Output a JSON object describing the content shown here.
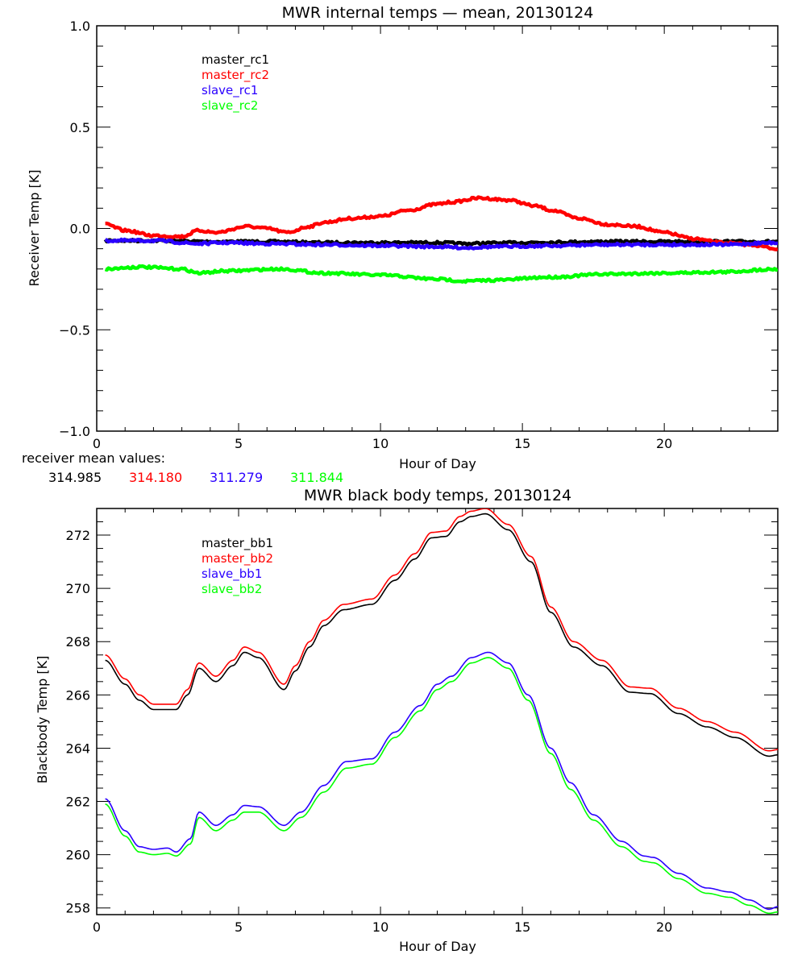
{
  "chart_data": [
    {
      "type": "line",
      "title": "MWR internal temps — mean, 20130124",
      "xlabel": "Hour of Day",
      "ylabel": "Receiver Temp [K]",
      "xlim": [
        0,
        24
      ],
      "ylim": [
        -1.0,
        1.0
      ],
      "xticks": [
        0,
        5,
        10,
        15,
        20
      ],
      "xtick_labels": [
        "0",
        "5",
        "10",
        "15",
        "20"
      ],
      "yticks": [
        -1.0,
        -0.5,
        0.0,
        0.5,
        1.0
      ],
      "ytick_labels": [
        "−1.0",
        "−0.5",
        "0.0",
        "0.5",
        "1.0"
      ],
      "x_minor_step": 1,
      "y_minor_step": 0.1,
      "grid": false,
      "legend_position": "top-left",
      "noisy": true,
      "series": [
        {
          "name": "master_rc1",
          "color": "#000000",
          "x": [
            0.3,
            2,
            4,
            6,
            8,
            10,
            12,
            13,
            14,
            16,
            18,
            20,
            22,
            24
          ],
          "values": [
            -0.06,
            -0.06,
            -0.065,
            -0.065,
            -0.07,
            -0.07,
            -0.07,
            -0.075,
            -0.072,
            -0.068,
            -0.065,
            -0.065,
            -0.065,
            -0.065
          ]
        },
        {
          "name": "master_rc2",
          "color": "#ff0000",
          "x": [
            0.3,
            1,
            2,
            3,
            3.6,
            4.2,
            5.3,
            6,
            6.7,
            7.5,
            8,
            9,
            10,
            11,
            12,
            12.5,
            13.5,
            14.5,
            15.5,
            16,
            17,
            18,
            19,
            20,
            21,
            22,
            23,
            24
          ],
          "values": [
            0.02,
            -0.01,
            -0.035,
            -0.04,
            -0.01,
            -0.02,
            0.01,
            0.0,
            -0.02,
            0.01,
            0.03,
            0.05,
            0.06,
            0.09,
            0.12,
            0.13,
            0.15,
            0.14,
            0.11,
            0.09,
            0.05,
            0.02,
            0.01,
            -0.02,
            -0.05,
            -0.07,
            -0.08,
            -0.1
          ]
        },
        {
          "name": "slave_rc1",
          "color": "#2a00ff",
          "x": [
            0.3,
            2,
            3.6,
            4.5,
            6,
            8,
            10,
            12,
            13,
            14,
            16,
            18,
            20,
            22,
            24
          ],
          "values": [
            -0.06,
            -0.06,
            -0.075,
            -0.07,
            -0.075,
            -0.08,
            -0.085,
            -0.09,
            -0.095,
            -0.09,
            -0.085,
            -0.08,
            -0.08,
            -0.08,
            -0.07
          ]
        },
        {
          "name": "slave_rc2",
          "color": "#00ff00",
          "x": [
            0.3,
            1.5,
            3,
            3.6,
            4.5,
            6.5,
            8,
            10,
            12,
            13,
            14,
            16,
            18,
            20,
            22,
            24
          ],
          "values": [
            -0.2,
            -0.19,
            -0.2,
            -0.22,
            -0.21,
            -0.2,
            -0.22,
            -0.23,
            -0.25,
            -0.26,
            -0.255,
            -0.24,
            -0.225,
            -0.22,
            -0.215,
            -0.2
          ]
        }
      ],
      "annotation": {
        "label": "receiver mean values:",
        "values": [
          {
            "text": "314.985",
            "color": "#000000"
          },
          {
            "text": "314.180",
            "color": "#ff0000"
          },
          {
            "text": "311.279",
            "color": "#2a00ff"
          },
          {
            "text": "311.844",
            "color": "#00ff00"
          }
        ]
      }
    },
    {
      "type": "line",
      "title": "MWR black body temps, 20130124",
      "xlabel": "Hour of Day",
      "ylabel": "Blackbody Temp [K]",
      "xlim": [
        0,
        24
      ],
      "ylim": [
        257.75,
        273.0
      ],
      "xticks": [
        0,
        5,
        10,
        15,
        20
      ],
      "xtick_labels": [
        "0",
        "5",
        "10",
        "15",
        "20"
      ],
      "yticks": [
        258,
        260,
        262,
        264,
        266,
        268,
        270,
        272
      ],
      "ytick_labels": [
        "258",
        "260",
        "262",
        "264",
        "266",
        "268",
        "270",
        "272"
      ],
      "x_minor_step": 1,
      "y_minor_step": 0.5,
      "grid": false,
      "legend_position": "top-left",
      "noisy": false,
      "series": [
        {
          "name": "master_bb1",
          "color": "#000000",
          "x": [
            0.3,
            1,
            1.5,
            2,
            2.8,
            3.2,
            3.6,
            4.2,
            4.8,
            5.2,
            5.7,
            6.6,
            7,
            7.5,
            8,
            8.7,
            9.7,
            10.5,
            11.2,
            11.8,
            12.3,
            12.8,
            13.2,
            13.7,
            14.5,
            15.3,
            16,
            16.8,
            17.8,
            18.8,
            19.5,
            20.5,
            21.5,
            22.5,
            23.7,
            24
          ],
          "values": [
            267.3,
            266.4,
            265.8,
            265.45,
            265.45,
            266.0,
            267.0,
            266.5,
            267.1,
            267.6,
            267.4,
            266.2,
            266.9,
            267.8,
            268.6,
            269.2,
            269.4,
            270.3,
            271.1,
            271.9,
            271.95,
            272.5,
            272.7,
            272.8,
            272.2,
            271.0,
            269.1,
            267.8,
            267.1,
            266.1,
            266.05,
            265.3,
            264.8,
            264.4,
            263.7,
            263.75
          ]
        },
        {
          "name": "master_bb2",
          "color": "#ff0000",
          "x": [
            0.3,
            1,
            1.5,
            2,
            2.8,
            3.2,
            3.6,
            4.2,
            4.8,
            5.2,
            5.7,
            6.6,
            7,
            7.5,
            8,
            8.7,
            9.7,
            10.5,
            11.2,
            11.8,
            12.3,
            12.8,
            13.2,
            13.7,
            14.5,
            15.3,
            16,
            16.8,
            17.8,
            18.8,
            19.5,
            20.5,
            21.5,
            22.5,
            23.7,
            24
          ],
          "values": [
            267.5,
            266.6,
            266.0,
            265.65,
            265.65,
            266.2,
            267.2,
            266.7,
            267.3,
            267.8,
            267.6,
            266.4,
            267.1,
            268.0,
            268.8,
            269.4,
            269.6,
            270.5,
            271.3,
            272.1,
            272.15,
            272.7,
            272.9,
            273.0,
            272.4,
            271.2,
            269.3,
            268.0,
            267.3,
            266.3,
            266.25,
            265.5,
            265.0,
            264.6,
            263.9,
            263.95
          ]
        },
        {
          "name": "slave_bb1",
          "color": "#2a00ff",
          "x": [
            0.3,
            1,
            1.5,
            2,
            2.5,
            2.8,
            3.3,
            3.6,
            4.2,
            4.8,
            5.2,
            5.7,
            6.6,
            7.2,
            8,
            8.8,
            9.7,
            10.5,
            11.4,
            12,
            12.5,
            13.2,
            13.8,
            14.5,
            15.2,
            16,
            16.7,
            17.5,
            18.5,
            19.3,
            19.6,
            20.5,
            21.5,
            22.3,
            23,
            23.7,
            24
          ],
          "values": [
            262.1,
            260.9,
            260.3,
            260.2,
            260.25,
            260.1,
            260.6,
            261.6,
            261.1,
            261.5,
            261.85,
            261.8,
            261.1,
            261.6,
            262.6,
            263.5,
            263.6,
            264.6,
            265.6,
            266.4,
            266.7,
            267.4,
            267.6,
            267.2,
            266.0,
            264.0,
            262.7,
            261.5,
            260.5,
            259.95,
            259.9,
            259.3,
            258.75,
            258.6,
            258.3,
            257.95,
            258.05
          ]
        },
        {
          "name": "slave_bb2",
          "color": "#00ff00",
          "x": [
            0.3,
            1,
            1.5,
            2,
            2.5,
            2.8,
            3.3,
            3.6,
            4.2,
            4.8,
            5.2,
            5.7,
            6.6,
            7.2,
            8,
            8.8,
            9.7,
            10.5,
            11.4,
            12,
            12.5,
            13.2,
            13.8,
            14.5,
            15.2,
            16,
            16.7,
            17.5,
            18.5,
            19.3,
            19.6,
            20.5,
            21.5,
            22.3,
            23,
            23.7,
            24
          ],
          "values": [
            261.9,
            260.7,
            260.1,
            260.0,
            260.05,
            259.95,
            260.4,
            261.4,
            260.9,
            261.3,
            261.6,
            261.6,
            260.9,
            261.4,
            262.35,
            263.25,
            263.4,
            264.4,
            265.4,
            266.2,
            266.5,
            267.2,
            267.4,
            267.0,
            265.8,
            263.8,
            262.45,
            261.3,
            260.3,
            259.75,
            259.7,
            259.1,
            258.55,
            258.4,
            258.1,
            257.8,
            257.85
          ]
        }
      ]
    }
  ]
}
